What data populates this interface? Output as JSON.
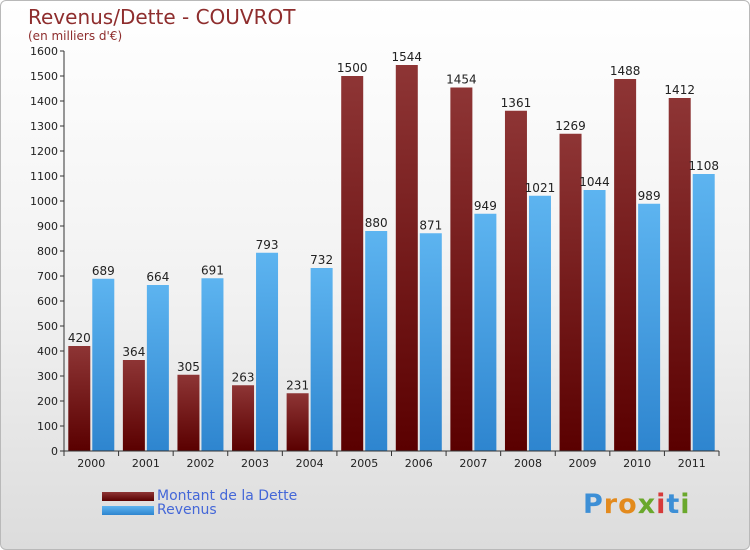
{
  "header": {
    "title": "Revenus/Dette - COUVROT",
    "unit": "(en milliers d'€)"
  },
  "legend": {
    "debt_label": "Montant de la Dette",
    "revenue_label": "Revenus"
  },
  "brand": {
    "logo_text": "Proxiti"
  },
  "colors": {
    "debt": "#6e1515",
    "revenue": "#4ba6e6",
    "axis": "#333333"
  },
  "chart_data": {
    "type": "bar",
    "title": "Revenus/Dette - COUVROT",
    "ylabel": "(en milliers d'€)",
    "xlabel": "",
    "ylim": [
      0,
      1600
    ],
    "ytick_step": 100,
    "grid": false,
    "legend_position": "bottom-left",
    "categories": [
      "2000",
      "2001",
      "2002",
      "2003",
      "2004",
      "2005",
      "2006",
      "2007",
      "2008",
      "2009",
      "2010",
      "2011"
    ],
    "series": [
      {
        "name": "Montant de la Dette",
        "values": [
          420,
          364,
          305,
          263,
          231,
          1500,
          1544,
          1454,
          1361,
          1269,
          1488,
          1412
        ]
      },
      {
        "name": "Revenus",
        "values": [
          689,
          664,
          691,
          793,
          732,
          880,
          871,
          949,
          1021,
          1044,
          989,
          1108
        ]
      }
    ]
  }
}
